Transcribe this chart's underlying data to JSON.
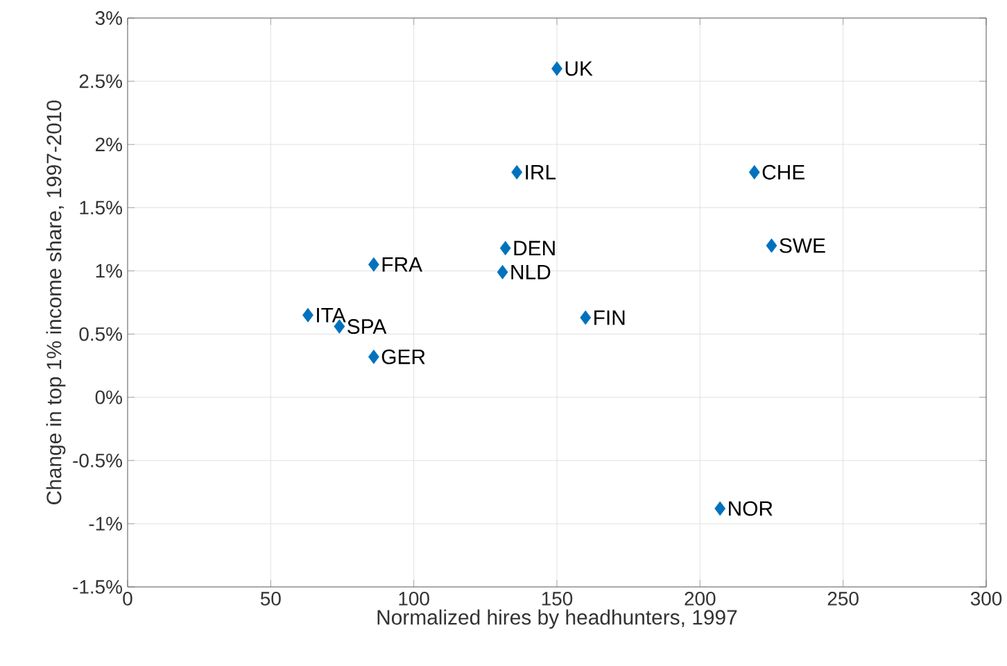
{
  "chart_data": {
    "type": "scatter",
    "xlabel": "Normalized hires by headhunters, 1997",
    "ylabel": "Change in top 1% income share, 1997-2010",
    "x": [
      150,
      136,
      219,
      225,
      132,
      131,
      86,
      160,
      63,
      74,
      86,
      207
    ],
    "values": [
      2.6,
      1.78,
      1.78,
      1.2,
      1.18,
      0.99,
      1.05,
      0.63,
      0.65,
      0.56,
      0.32,
      -0.88
    ],
    "color": "#0072bd",
    "marker": "diamond",
    "grid": true,
    "xlim": [
      0,
      300
    ],
    "xticks": [
      0,
      50,
      100,
      150,
      200,
      250,
      300
    ],
    "ylim": [
      -1.5,
      3
    ],
    "yticks": [
      {
        "value": -1.5,
        "label": "-1.5%"
      },
      {
        "value": -1,
        "label": "-1%"
      },
      {
        "value": -0.5,
        "label": "-0.5%"
      },
      {
        "value": 0,
        "label": "0%"
      },
      {
        "value": 0.5,
        "label": "0.5%"
      },
      {
        "value": 1,
        "label": "1%"
      },
      {
        "value": 1.5,
        "label": "1.5%"
      },
      {
        "value": 2,
        "label": "2%"
      },
      {
        "value": 2.5,
        "label": "2.5%"
      },
      {
        "value": 3,
        "label": "3%"
      }
    ],
    "annotations": [
      {
        "text": "UK",
        "x": 150,
        "y": 2.6
      },
      {
        "text": "IRL",
        "x": 136,
        "y": 1.78
      },
      {
        "text": "CHE",
        "x": 219,
        "y": 1.78
      },
      {
        "text": "SWE",
        "x": 225,
        "y": 1.2
      },
      {
        "text": "DEN",
        "x": 132,
        "y": 1.18
      },
      {
        "text": "NLD",
        "x": 131,
        "y": 0.99
      },
      {
        "text": "FRA",
        "x": 86,
        "y": 1.05
      },
      {
        "text": "FIN",
        "x": 160,
        "y": 0.63
      },
      {
        "text": "ITA",
        "x": 63,
        "y": 0.65
      },
      {
        "text": "SPA",
        "x": 74,
        "y": 0.56
      },
      {
        "text": "GER",
        "x": 86,
        "y": 0.32
      },
      {
        "text": "NOR",
        "x": 207,
        "y": -0.88
      }
    ]
  }
}
